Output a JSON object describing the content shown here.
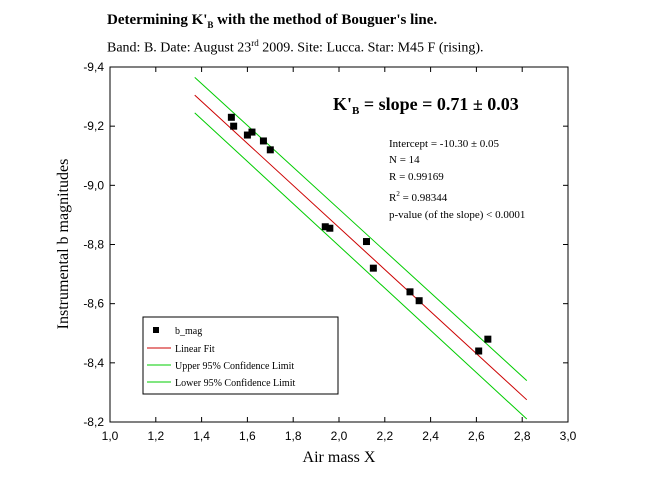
{
  "header": {
    "title_pre": "Determining K'",
    "title_sub": "B",
    "title_post": " with the method of Bouguer's line.",
    "sub_pre": "Band: B. Date: August 23",
    "sub_sup": "rd",
    "sub_post": " 2009. Site: Lucca.  Star: M45 F (rising)."
  },
  "chart_data": {
    "type": "scatter",
    "xlabel": "Air mass  X",
    "ylabel": "Instrumental  b  magnitudes",
    "xlim": [
      1.0,
      3.0
    ],
    "ylim": [
      -8.2,
      -9.4
    ],
    "xticks": [
      1.0,
      1.2,
      1.4,
      1.6,
      1.8,
      2.0,
      2.2,
      2.4,
      2.6,
      2.8,
      3.0
    ],
    "xtick_labels": [
      "1,0",
      "1,2",
      "1,4",
      "1,6",
      "1,8",
      "2,0",
      "2,2",
      "2,4",
      "2,6",
      "2,8",
      "3,0"
    ],
    "yticks": [
      -9.4,
      -9.2,
      -9.0,
      -8.8,
      -8.6,
      -8.4,
      -8.2
    ],
    "ytick_labels": [
      "-9,4",
      "-9,2",
      "-9,0",
      "-8,8",
      "-8,6",
      "-8,4",
      "-8,2"
    ],
    "grid": false,
    "legend_position": "bottom-left",
    "series": [
      {
        "name": "b_mag",
        "kind": "points",
        "color": "#000000",
        "x": [
          1.53,
          1.54,
          1.6,
          1.62,
          1.67,
          1.7,
          1.94,
          1.96,
          2.12,
          2.15,
          2.31,
          2.35,
          2.61,
          2.65
        ],
        "y": [
          -9.23,
          -9.2,
          -9.17,
          -9.18,
          -9.15,
          -9.12,
          -8.86,
          -8.855,
          -8.81,
          -8.72,
          -8.64,
          -8.61,
          -8.44,
          -8.48
        ]
      },
      {
        "name": "Linear Fit",
        "kind": "line",
        "color": "#cc0000",
        "x": [
          1.37,
          2.82
        ],
        "y": [
          -9.305,
          -8.275
        ]
      },
      {
        "name": "Upper 95% Confidence Limit",
        "kind": "line",
        "color": "#00cc00",
        "x": [
          1.37,
          2.82
        ],
        "y": [
          -9.365,
          -8.34
        ]
      },
      {
        "name": "Lower 95% Confidence Limit",
        "kind": "line",
        "color": "#00cc00",
        "x": [
          1.37,
          2.82
        ],
        "y": [
          -9.245,
          -8.21
        ]
      }
    ],
    "annotations": {
      "slope_pre": "K'",
      "slope_sub": "B",
      "slope_post": " = slope = 0.71 ± 0.03",
      "intercept": "Intercept = -10.30 ± 0.05",
      "n": "N = 14",
      "r": "R = 0.99169",
      "r2_pre": "R",
      "r2_sup": "2",
      "r2_post": " = 0.98344",
      "pvalue": "p-value (of the slope) < 0.0001"
    }
  }
}
